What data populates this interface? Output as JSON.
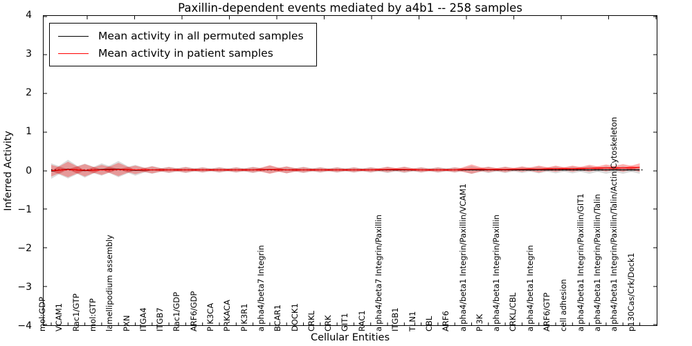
{
  "title": "Paxillin-dependent events mediated by a4b1 -- 258 samples",
  "axes": {
    "ylabel": "Inferred Activity",
    "xlabel": "Cellular Entities",
    "ytick_labels": [
      "4",
      "3",
      "2",
      "1",
      "0",
      "−1",
      "−2",
      "−3",
      "−4"
    ]
  },
  "legend": {
    "items": [
      {
        "label": "Mean activity in all permuted samples",
        "color": "#000000"
      },
      {
        "label": "Mean activity in patient samples",
        "color": "#ff0000"
      }
    ]
  },
  "chart_data": {
    "type": "line",
    "title": "Paxillin-dependent events mediated by a4b1 -- 258 samples",
    "xlabel": "Cellular Entities",
    "ylabel": "Inferred Activity",
    "ylim": [
      -4,
      4
    ],
    "yticks": [
      -4,
      -3,
      -2,
      -1,
      0,
      1,
      2,
      3,
      4
    ],
    "grid": false,
    "legend_position": "upper left",
    "zero_line": {
      "style": "dotted",
      "color": "#000000",
      "y": 0
    },
    "categories": [
      "mol:GDP",
      "VCAM1",
      "Rac1/GTP",
      "mol:GTP",
      "lamellipodium assembly",
      "PXN",
      "ITGA4",
      "ITGB7",
      "Rac1/GDP",
      "ARF6/GDP",
      "PIK3CA",
      "PRKACA",
      "PIK3R1",
      "alpha4/beta7 Integrin",
      "BCAR1",
      "DOCK1",
      "CRKL",
      "CRK",
      "GIT1",
      "RAC1",
      "alpha4/beta7 Integrin/Paxillin",
      "ITGB1",
      "TLN1",
      "CBL",
      "ARF6",
      "alpha4/beta1 Integrin/Paxillin/VCAM1",
      "PI3K",
      "alpha4/beta1 Integrin/Paxillin",
      "CRKL/CBL",
      "alpha4/beta1 Integrin",
      "ARF6/GTP",
      "cell adhesion",
      "alpha4/beta1 Integrin/Paxillin/GIT1",
      "alpha4/beta1 Integrin/Paxillin/Talin",
      "alpha4/beta1 Integrin/Paxillin/Talin/Actin Cytoskeleton",
      "p130Cas/Crk/Dock1"
    ],
    "series": [
      {
        "name": "Mean activity in all permuted samples",
        "color": "#000000",
        "line_width": 1.3,
        "values": [
          -0.03,
          0.02,
          -0.02,
          0.01,
          0.02,
          -0.01,
          0.0,
          0.0,
          0.0,
          0.0,
          0.0,
          0.0,
          0.0,
          0.01,
          0.0,
          0.0,
          0.0,
          0.0,
          0.0,
          0.0,
          0.0,
          0.0,
          0.0,
          0.0,
          0.0,
          0.0,
          0.0,
          0.0,
          0.0,
          0.0,
          0.0,
          0.0,
          0.0,
          0.0,
          0.0,
          0.0
        ],
        "band_halfwidth": [
          0.2,
          0.24,
          0.18,
          0.16,
          0.21,
          0.14,
          0.1,
          0.08,
          0.08,
          0.07,
          0.07,
          0.07,
          0.08,
          0.1,
          0.09,
          0.08,
          0.07,
          0.07,
          0.07,
          0.07,
          0.08,
          0.08,
          0.07,
          0.07,
          0.07,
          0.1,
          0.08,
          0.08,
          0.08,
          0.09,
          0.09,
          0.09,
          0.1,
          0.1,
          0.1,
          0.1
        ],
        "band_color": "rgba(125,125,125,0.28)"
      },
      {
        "name": "Mean activity in patient samples",
        "color": "#ff0000",
        "line_width": 1.3,
        "values": [
          -0.02,
          0.01,
          -0.01,
          0.0,
          0.01,
          0.0,
          0.0,
          0.0,
          0.0,
          0.0,
          0.0,
          0.0,
          0.0,
          0.01,
          0.0,
          0.0,
          0.0,
          0.0,
          0.0,
          0.0,
          0.01,
          0.01,
          0.0,
          0.0,
          0.0,
          0.02,
          0.01,
          0.01,
          0.02,
          0.02,
          0.03,
          0.03,
          0.04,
          0.05,
          0.05,
          0.06
        ],
        "band_halfwidth": [
          0.15,
          0.2,
          0.16,
          0.13,
          0.17,
          0.11,
          0.09,
          0.07,
          0.07,
          0.06,
          0.06,
          0.06,
          0.07,
          0.11,
          0.09,
          0.07,
          0.06,
          0.06,
          0.06,
          0.06,
          0.07,
          0.07,
          0.06,
          0.06,
          0.06,
          0.12,
          0.07,
          0.07,
          0.07,
          0.09,
          0.08,
          0.08,
          0.09,
          0.09,
          0.1,
          0.11
        ],
        "band_color": "rgba(255,0,0,0.30)"
      }
    ]
  }
}
